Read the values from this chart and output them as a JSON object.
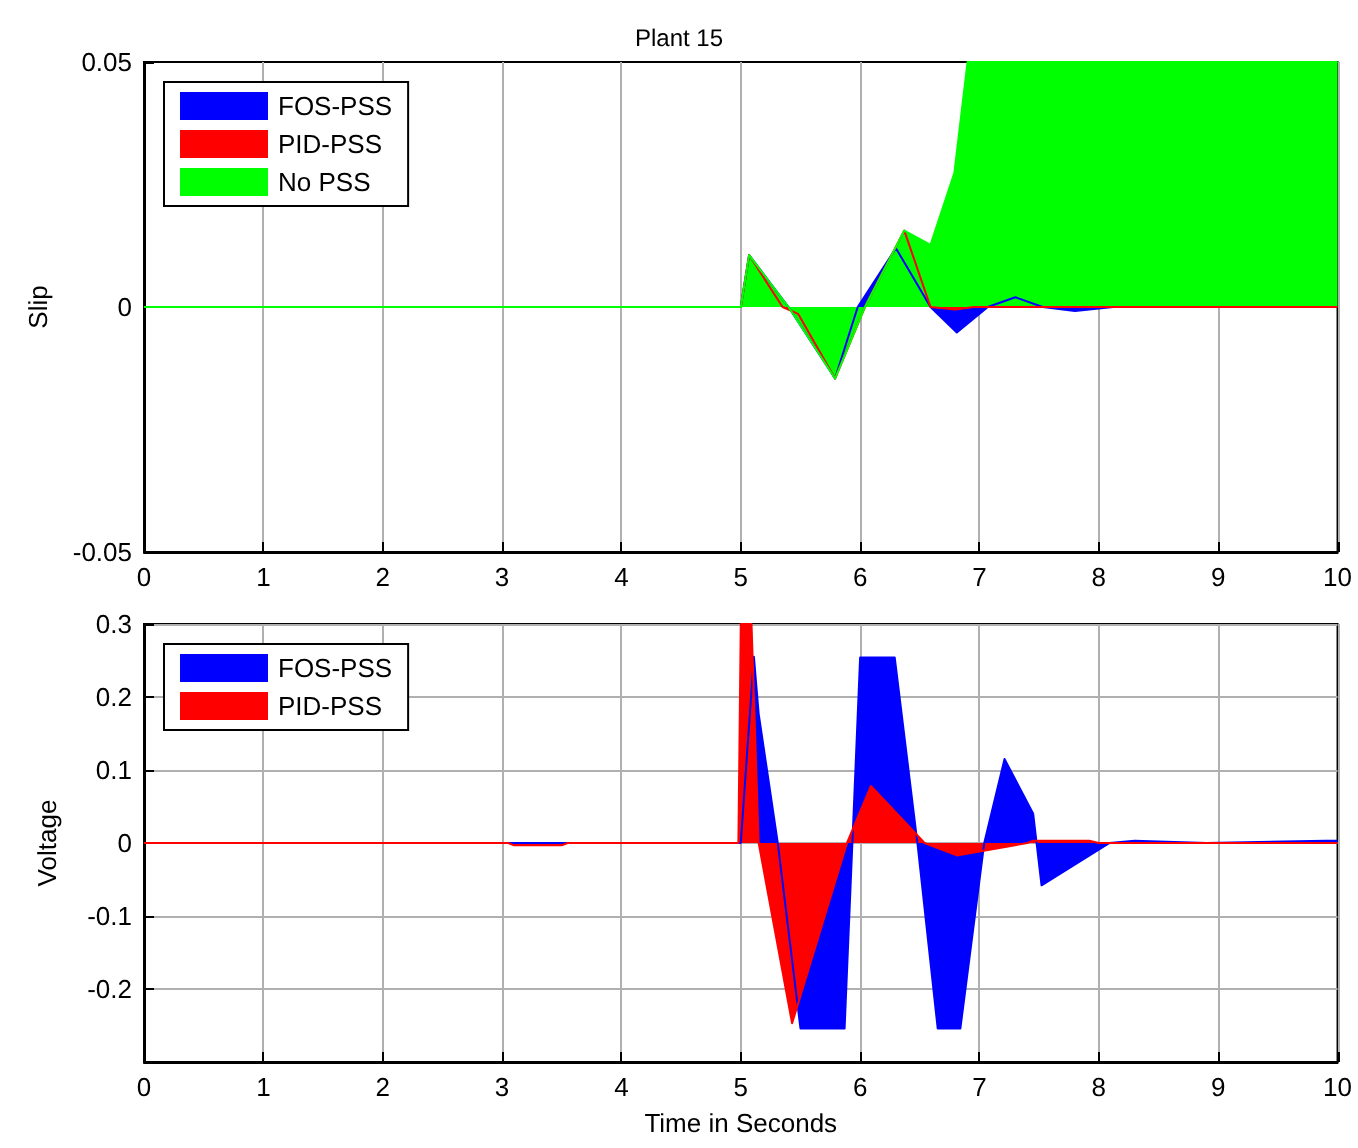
{
  "chart_data": [
    {
      "type": "area",
      "title": "Plant 15",
      "ylabel": "Slip",
      "xlim": [
        0,
        10
      ],
      "xticks": [
        0,
        1,
        2,
        3,
        4,
        5,
        6,
        7,
        8,
        9,
        10
      ],
      "ylim": [
        -0.05,
        0.05
      ],
      "yticks": [
        -0.05,
        0,
        0.05
      ],
      "grid": "x",
      "legend": "top left",
      "marker": "none",
      "series": [
        {
          "name": "FOS-PSS",
          "color": "#0000ff",
          "x": [
            0,
            5,
            5.07,
            5.4,
            5.79,
            5.98,
            6.3,
            6.59,
            6.81,
            7.07,
            7.3,
            7.53,
            7.8,
            8.12,
            10
          ],
          "values": [
            0,
            0,
            0.0106,
            0,
            -0.0146,
            0,
            0.012,
            0,
            -0.0052,
            0,
            0.002,
            0,
            -0.0008,
            0,
            0
          ]
        },
        {
          "name": "PID-PSS",
          "color": "#ff0000",
          "x": [
            0,
            5,
            5.07,
            5.35,
            5.48,
            5.79,
            6.04,
            6.37,
            6.59,
            6.8,
            6.95,
            10
          ],
          "values": [
            0,
            0,
            0.0106,
            0,
            -0.0014,
            -0.0146,
            0,
            0.0156,
            0,
            -0.0005,
            0,
            0
          ]
        },
        {
          "name": "No PSS",
          "color": "#00ff00",
          "x": [
            0,
            5,
            5.07,
            5.4,
            5.79,
            6.04,
            6.37,
            6.59,
            6.79,
            6.9,
            10
          ],
          "values": [
            0,
            0,
            0.0106,
            0,
            -0.0146,
            0,
            0.0156,
            0.0127,
            0.0274,
            0.05,
            0.05
          ]
        }
      ]
    },
    {
      "type": "area",
      "xlabel": "Time in Seconds",
      "ylabel": "Voltage",
      "xlim": [
        0,
        10
      ],
      "xticks": [
        0,
        1,
        2,
        3,
        4,
        5,
        6,
        7,
        8,
        9,
        10
      ],
      "ylim": [
        -0.3,
        0.3
      ],
      "yticks": [
        -0.2,
        -0.1,
        0,
        0.1,
        0.2,
        0.3
      ],
      "grid": true,
      "legend": "top left",
      "marker": "none",
      "series": [
        {
          "name": "FOS-PSS",
          "color": "#0000ff",
          "x": [
            0,
            5,
            5.11,
            5.15,
            5.31,
            5.5,
            5.87,
            6.0,
            6.29,
            6.48,
            6.65,
            6.84,
            7.04,
            7.21,
            7.45,
            7.52,
            8.09,
            8.3,
            8.9,
            9.9,
            10
          ],
          "values": [
            0,
            0,
            0.255,
            0.177,
            0,
            -0.254,
            -0.254,
            0.254,
            0.254,
            0,
            -0.254,
            -0.254,
            0,
            0.115,
            0.04,
            -0.058,
            0,
            0.003,
            0,
            0.003,
            0.003
          ]
        },
        {
          "name": "PID-PSS",
          "color": "#ff0000",
          "x": [
            0,
            3.05,
            3.1,
            3.5,
            3.55,
            4.98,
            5.0,
            5.09,
            5.15,
            5.43,
            5.89,
            6.09,
            6.54,
            6.81,
            7.4,
            7.45,
            7.92,
            8.0,
            10
          ],
          "values": [
            0,
            0,
            -0.003,
            -0.003,
            0,
            0,
            0.3,
            0.3,
            0,
            -0.247,
            0,
            0.078,
            0,
            -0.017,
            0,
            0.003,
            0.003,
            0,
            0
          ]
        }
      ]
    }
  ]
}
